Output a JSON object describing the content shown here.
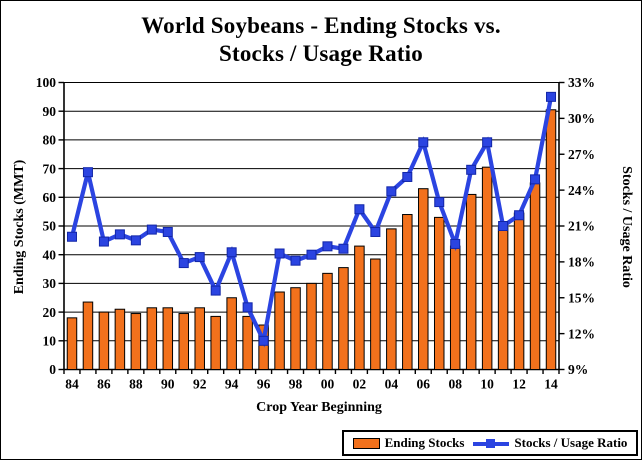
{
  "title": {
    "line1": "World Soybeans - Ending Stocks vs.",
    "line2": "Stocks / Usage Ratio"
  },
  "axes": {
    "left": {
      "title": "Ending Stocks (MMT)",
      "tick_labels": [
        "100",
        "90",
        "80",
        "70",
        "60",
        "50",
        "40",
        "30",
        "20",
        "10",
        "0"
      ]
    },
    "right": {
      "title": "Stocks / Usage Ratio",
      "tick_labels": [
        "33%",
        "30%",
        "27%",
        "24%",
        "21%",
        "18%",
        "15%",
        "12%",
        "9%"
      ]
    },
    "x": {
      "title": "Crop Year Beginning",
      "tick_labels": [
        "84",
        "86",
        "88",
        "90",
        "92",
        "94",
        "96",
        "98",
        "00",
        "02",
        "04",
        "06",
        "08",
        "10",
        "12",
        "14"
      ]
    }
  },
  "legend": {
    "items": [
      {
        "label": "Ending Stocks",
        "marker": "bar-swatch",
        "color": "#F2711C"
      },
      {
        "label": "Stocks / Usage Ratio",
        "marker": "line-square",
        "color": "#2B44E1"
      }
    ]
  },
  "colors": {
    "bar_fill": "#F2711C",
    "bar_outline": "#000000",
    "line": "#2B44E1",
    "marker_fill": "#2B44E1",
    "marker_outline": "#1226A8",
    "grid": "#000000",
    "text": "#000000"
  },
  "chart_data": {
    "type": "bar+line",
    "title": "World Soybeans - Ending Stocks vs. Stocks / Usage Ratio",
    "xlabel": "Crop Year Beginning",
    "categories": [
      "84",
      "85",
      "86",
      "87",
      "88",
      "89",
      "90",
      "91",
      "92",
      "93",
      "94",
      "95",
      "96",
      "97",
      "98",
      "99",
      "00",
      "01",
      "02",
      "03",
      "04",
      "05",
      "06",
      "07",
      "08",
      "09",
      "10",
      "11",
      "12",
      "13",
      "14"
    ],
    "series": [
      {
        "name": "Ending Stocks",
        "type": "bar",
        "axis": "left",
        "unit": "MMT",
        "ylabel": "Ending Stocks (MMT)",
        "ylim": [
          0,
          100
        ],
        "values": [
          18,
          23.5,
          20,
          21,
          19.5,
          21.5,
          21.5,
          19.5,
          21.5,
          18.5,
          25,
          18.5,
          15.5,
          27,
          28.5,
          30,
          33.5,
          35.5,
          43,
          38.5,
          49,
          54,
          63,
          53,
          43,
          61,
          70.5,
          49.5,
          54.5,
          65,
          90.5
        ]
      },
      {
        "name": "Stocks / Usage Ratio",
        "type": "line",
        "axis": "right",
        "unit": "%",
        "ylabel": "Stocks / Usage Ratio",
        "ylim": [
          9,
          33
        ],
        "values": [
          20.1,
          25.5,
          19.7,
          20.3,
          19.8,
          20.7,
          20.5,
          17.9,
          18.4,
          15.6,
          18.8,
          14.2,
          11.4,
          18.7,
          18.1,
          18.6,
          19.3,
          19.1,
          22.4,
          20.5,
          23.9,
          25.1,
          28.0,
          23.0,
          19.5,
          25.7,
          28.0,
          21.0,
          21.9,
          24.9,
          31.8
        ]
      }
    ],
    "grid": "horizontal major gridlines (left axis, every 10 MMT)",
    "legend_position": "bottom-right"
  }
}
